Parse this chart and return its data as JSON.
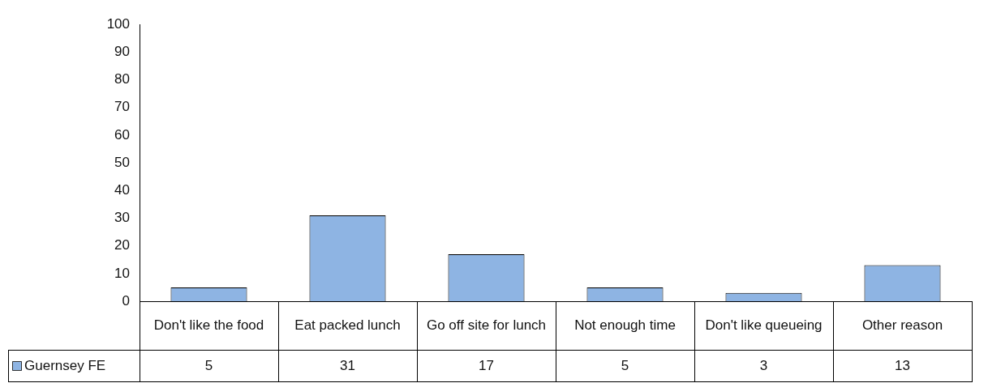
{
  "chart_data": {
    "type": "bar",
    "categories": [
      "Don't like the food",
      "Eat packed lunch",
      "Go off site for lunch",
      "Not enough time",
      "Don't like queueing",
      "Other reason"
    ],
    "series": [
      {
        "name": "Guernsey FE",
        "color": "#8eb4e3",
        "values": [
          5,
          31,
          17,
          5,
          3,
          13
        ]
      }
    ],
    "ylim": [
      0,
      100
    ],
    "yticks": [
      0,
      10,
      20,
      30,
      40,
      50,
      60,
      70,
      80,
      90,
      100
    ],
    "data_labels": true
  }
}
